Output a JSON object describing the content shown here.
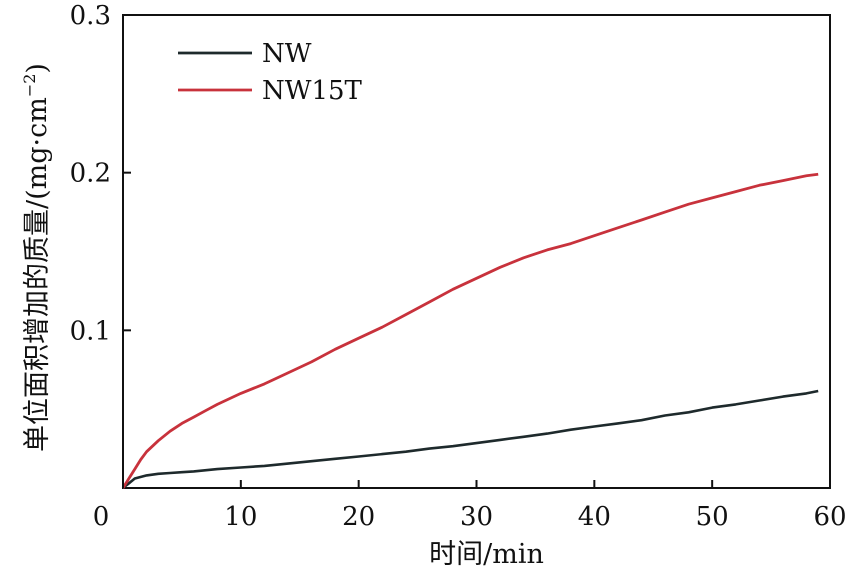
{
  "chart_data": {
    "type": "line",
    "title": "",
    "xlabel": "时间/min",
    "ylabel": "单位面积增加的质量/(mg·cm",
    "ylabel_sup": "−2",
    "ylabel_close": ")",
    "xlim": [
      0,
      60
    ],
    "ylim": [
      0,
      0.3
    ],
    "xticks": [
      "0",
      "10",
      "20",
      "30",
      "40",
      "50",
      "60"
    ],
    "yticks": [
      "0.1",
      "0.2",
      "0.3"
    ],
    "grid": false,
    "legend_position": "top-left",
    "series": [
      {
        "name": "NW",
        "color": "#1e2a2c",
        "x": [
          0,
          0.5,
          1,
          2,
          3,
          4,
          5,
          6,
          8,
          10,
          12,
          14,
          16,
          18,
          20,
          22,
          24,
          26,
          28,
          30,
          32,
          34,
          36,
          38,
          40,
          42,
          44,
          46,
          48,
          50,
          52,
          54,
          56,
          58,
          59
        ],
        "y": [
          0,
          0.003,
          0.006,
          0.008,
          0.009,
          0.0095,
          0.01,
          0.0105,
          0.012,
          0.013,
          0.014,
          0.0155,
          0.017,
          0.0185,
          0.02,
          0.0215,
          0.023,
          0.025,
          0.0265,
          0.0285,
          0.0305,
          0.0325,
          0.0345,
          0.037,
          0.039,
          0.041,
          0.043,
          0.046,
          0.048,
          0.051,
          0.053,
          0.0555,
          0.058,
          0.06,
          0.0615
        ]
      },
      {
        "name": "NW15T",
        "color": "#c8323c",
        "x": [
          0,
          0.5,
          1,
          1.5,
          2,
          3,
          4,
          5,
          6,
          7,
          8,
          10,
          12,
          14,
          16,
          18,
          20,
          22,
          24,
          26,
          28,
          30,
          32,
          34,
          36,
          38,
          40,
          42,
          44,
          46,
          48,
          50,
          52,
          54,
          56,
          58,
          59
        ],
        "y": [
          0,
          0.006,
          0.012,
          0.018,
          0.023,
          0.03,
          0.036,
          0.041,
          0.045,
          0.049,
          0.053,
          0.06,
          0.066,
          0.073,
          0.08,
          0.088,
          0.095,
          0.102,
          0.11,
          0.118,
          0.126,
          0.133,
          0.14,
          0.146,
          0.151,
          0.155,
          0.16,
          0.165,
          0.17,
          0.175,
          0.18,
          0.184,
          0.188,
          0.192,
          0.195,
          0.198,
          0.199
        ]
      }
    ]
  }
}
